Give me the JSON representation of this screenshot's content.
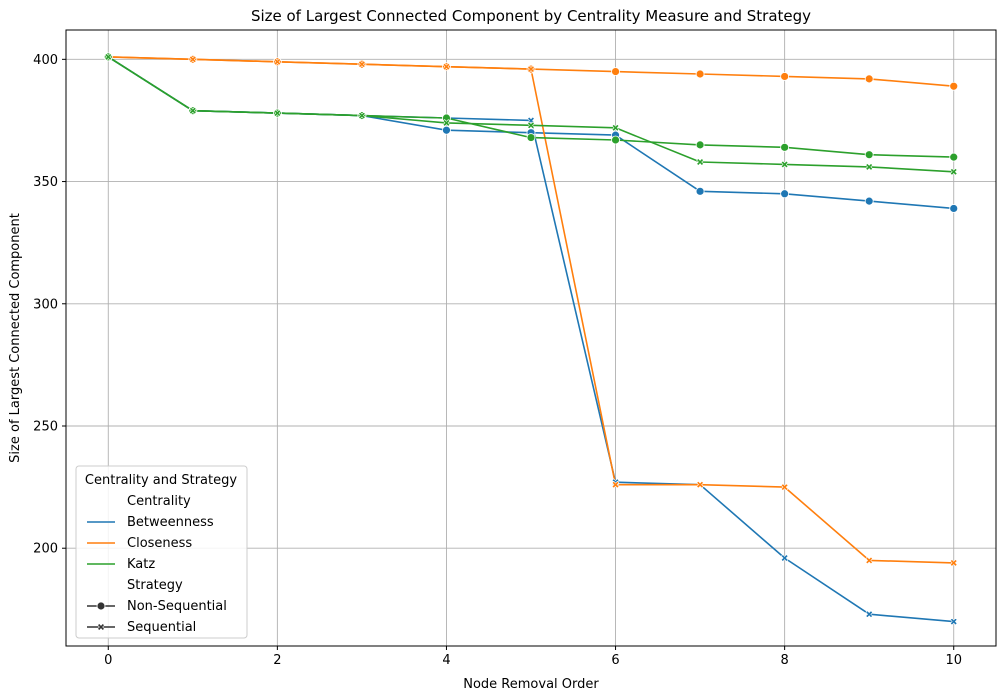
{
  "chart_data": {
    "type": "line",
    "title": "Size of Largest Connected Component by Centrality Measure and Strategy",
    "xlabel": "Node Removal Order",
    "ylabel": "Size of Largest Connected Component",
    "xlim": [
      -0.5,
      10.5
    ],
    "ylim": [
      160,
      412
    ],
    "xticks": [
      0,
      2,
      4,
      6,
      8,
      10
    ],
    "yticks": [
      200,
      250,
      300,
      350,
      400
    ],
    "grid": true,
    "legend": {
      "placement": "lower-left",
      "title": "Centrality and Strategy",
      "centrality_header": "Centrality",
      "strategy_header": "Strategy",
      "strategies": [
        {
          "name": "Non-Sequential",
          "marker": "circle"
        },
        {
          "name": "Sequential",
          "marker": "x"
        }
      ]
    },
    "x": [
      0,
      1,
      2,
      3,
      4,
      5,
      6,
      7,
      8,
      9,
      10
    ],
    "series": [
      {
        "name": "Betweenness",
        "strategy": "Non-Sequential",
        "color": "#1f77b4",
        "marker": "circle",
        "values": [
          401,
          379,
          378,
          377,
          371,
          370,
          369,
          346,
          345,
          342,
          339
        ]
      },
      {
        "name": "Betweenness",
        "strategy": "Sequential",
        "color": "#1f77b4",
        "marker": "x",
        "values": [
          401,
          379,
          378,
          377,
          376,
          375,
          227,
          226,
          196,
          173,
          170
        ]
      },
      {
        "name": "Closeness",
        "strategy": "Non-Sequential",
        "color": "#ff7f0e",
        "marker": "circle",
        "values": [
          401,
          400,
          399,
          398,
          397,
          396,
          395,
          394,
          393,
          392,
          389
        ]
      },
      {
        "name": "Closeness",
        "strategy": "Sequential",
        "color": "#ff7f0e",
        "marker": "x",
        "values": [
          401,
          400,
          399,
          398,
          397,
          396,
          226,
          226,
          225,
          195,
          194
        ]
      },
      {
        "name": "Katz",
        "strategy": "Non-Sequential",
        "color": "#2ca02c",
        "marker": "circle",
        "values": [
          401,
          379,
          378,
          377,
          376,
          368,
          367,
          365,
          364,
          361,
          360
        ]
      },
      {
        "name": "Katz",
        "strategy": "Sequential",
        "color": "#2ca02c",
        "marker": "x",
        "values": [
          401,
          379,
          378,
          377,
          374,
          373,
          372,
          358,
          357,
          356,
          354
        ]
      }
    ]
  }
}
